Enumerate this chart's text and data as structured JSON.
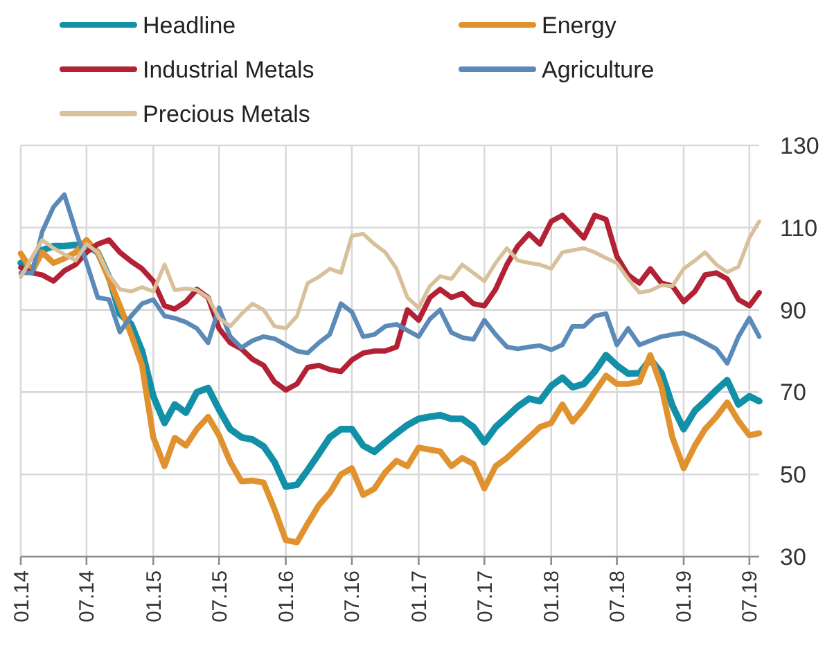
{
  "chart_data": {
    "type": "line",
    "legend": "top",
    "grid": true,
    "line_style": "solid",
    "x": [
      "2014-01",
      "2014-02",
      "2014-03",
      "2014-04",
      "2014-05",
      "2014-06",
      "2014-07",
      "2014-08",
      "2014-09",
      "2014-10",
      "2014-11",
      "2014-12",
      "2015-01",
      "2015-02",
      "2015-03",
      "2015-04",
      "2015-05",
      "2015-06",
      "2015-07",
      "2015-08",
      "2015-09",
      "2015-10",
      "2015-11",
      "2015-12",
      "2016-01",
      "2016-02",
      "2016-03",
      "2016-04",
      "2016-05",
      "2016-06",
      "2016-07",
      "2016-08",
      "2016-09",
      "2016-10",
      "2016-11",
      "2016-12",
      "2017-01",
      "2017-02",
      "2017-03",
      "2017-04",
      "2017-05",
      "2017-06",
      "2017-07",
      "2017-08",
      "2017-09",
      "2017-10",
      "2017-11",
      "2017-12",
      "2018-01",
      "2018-02",
      "2018-03",
      "2018-04",
      "2018-05",
      "2018-06",
      "2018-07",
      "2018-08",
      "2018-09",
      "2018-10",
      "2018-11",
      "2018-12",
      "2019-01",
      "2019-02",
      "2019-03",
      "2019-04",
      "2019-05",
      "2019-06",
      "2019-07",
      "2019-07-28"
    ],
    "xlim": [
      "2014-01",
      "2019-07-28"
    ],
    "xticks": [
      {
        "value": "2014-01",
        "label": "01.14"
      },
      {
        "value": "2014-07",
        "label": "07.14"
      },
      {
        "value": "2015-01",
        "label": "01.15"
      },
      {
        "value": "2015-07",
        "label": "07.15"
      },
      {
        "value": "2016-01",
        "label": "01.16"
      },
      {
        "value": "2016-07",
        "label": "07.16"
      },
      {
        "value": "2017-01",
        "label": "01.17"
      },
      {
        "value": "2017-07",
        "label": "07.17"
      },
      {
        "value": "2018-01",
        "label": "01.18"
      },
      {
        "value": "2018-07",
        "label": "07.18"
      },
      {
        "value": "2019-01",
        "label": "01.19"
      },
      {
        "value": "2019-07",
        "label": "07.19"
      }
    ],
    "ylim": [
      30,
      130
    ],
    "yticks": [
      30,
      50,
      70,
      90,
      110,
      130
    ],
    "series": [
      {
        "name": "Headline",
        "color": "#1190a8",
        "values": [
          101.4,
          99.5,
          104.5,
          105.5,
          105.5,
          105.8,
          105.8,
          104,
          98,
          89,
          86.5,
          80,
          69,
          62.5,
          67,
          65,
          70,
          71,
          65.8,
          61,
          59,
          58.5,
          56.8,
          53,
          47,
          47.5,
          51,
          55,
          59,
          61,
          61,
          57,
          55.5,
          57.8,
          60,
          62,
          63.5,
          64,
          64.4,
          63.5,
          63.5,
          61.5,
          57.8,
          61.5,
          64,
          66.5,
          68.4,
          67.8,
          71.5,
          73.5,
          71.2,
          72,
          75,
          79,
          76.5,
          74.5,
          74.6,
          78,
          74.6,
          66.7,
          61,
          65.5,
          67.8,
          70.5,
          72.9,
          67,
          69,
          67.8
        ]
      },
      {
        "name": "Energy",
        "color": "#e0922f",
        "values": [
          103.7,
          99.5,
          104,
          101.4,
          102.5,
          104,
          107,
          104,
          97.5,
          91,
          84,
          76.5,
          59,
          52,
          58.9,
          57,
          61,
          64,
          59.5,
          53,
          48.3,
          48.5,
          48,
          41.5,
          34,
          33.5,
          38,
          42.5,
          45.5,
          50,
          51.5,
          45,
          46.5,
          50.5,
          53.3,
          52,
          56.5,
          56,
          55.6,
          52,
          54,
          52.5,
          46.6,
          52,
          54,
          56.5,
          59,
          61.5,
          62.5,
          67,
          62.8,
          66,
          70,
          74,
          72,
          72,
          72.5,
          79,
          71.2,
          59,
          51.5,
          57,
          61,
          64,
          67.5,
          63,
          59.5,
          60
        ]
      },
      {
        "name": "Industrial Metals",
        "color": "#b22234",
        "values": [
          100.3,
          99,
          98.5,
          97,
          99.5,
          101,
          104,
          106,
          107,
          104,
          101.8,
          100,
          97,
          91,
          90.2,
          92,
          95,
          93,
          85.5,
          82,
          80.5,
          78,
          76.5,
          72.5,
          70.5,
          72,
          76,
          76.5,
          75.5,
          75,
          77.8,
          79.5,
          80,
          80,
          81,
          90,
          87.5,
          93,
          95,
          93,
          94,
          91.5,
          91,
          95,
          101,
          105.5,
          108.5,
          106,
          111.5,
          113,
          110.4,
          107.5,
          113,
          112,
          103,
          98.5,
          96.5,
          100,
          96.5,
          95.8,
          92,
          94.5,
          98.5,
          99,
          97.5,
          92.5,
          91,
          94.2
        ]
      },
      {
        "name": "Agriculture",
        "color": "#5b8ab8",
        "values": [
          99,
          99,
          109,
          115,
          118,
          109.3,
          101.5,
          93,
          92.5,
          84.6,
          88.5,
          91.5,
          92.5,
          88.5,
          88,
          87,
          85.5,
          82,
          90.5,
          83.5,
          80.8,
          82.5,
          83.5,
          83,
          81.5,
          80,
          79.5,
          82,
          84,
          91.5,
          89.5,
          83.5,
          84,
          86,
          86.5,
          85,
          83.5,
          87.8,
          90,
          84.5,
          83.3,
          82.8,
          87.5,
          84,
          81,
          80.5,
          81,
          81.3,
          80.3,
          81.5,
          86,
          86,
          88.5,
          89.1,
          81.5,
          85.5,
          81.5,
          82.5,
          83.5,
          84,
          84.4,
          83.3,
          82,
          80.5,
          77,
          83.5,
          88,
          83.5
        ]
      },
      {
        "name": "Precious Metals",
        "color": "#d8c09a",
        "values": [
          98,
          102.8,
          107,
          105,
          103.5,
          102,
          106,
          104,
          98.5,
          95,
          94.5,
          95.5,
          94.5,
          101,
          94.8,
          95.2,
          94.8,
          93,
          88,
          86,
          89,
          91.5,
          90,
          86,
          85.5,
          88.5,
          96.5,
          98,
          100,
          99,
          108,
          108.5,
          106,
          104,
          100,
          93,
          90.5,
          95.8,
          98.2,
          97.5,
          101,
          99,
          97,
          101.4,
          105,
          102,
          101.4,
          101,
          100,
          104,
          104.5,
          105,
          104,
          102.6,
          101.4,
          97.5,
          94.2,
          94.7,
          96,
          95.8,
          100,
          102,
          104,
          101,
          99.2,
          100.5,
          107.5,
          111.5
        ]
      }
    ]
  }
}
